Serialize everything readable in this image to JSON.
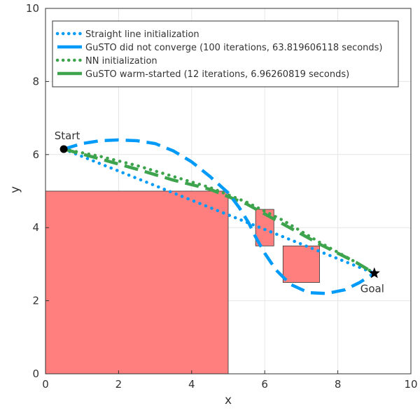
{
  "chart_data": {
    "type": "line",
    "xlabel": "x",
    "ylabel": "y",
    "xlim": [
      0,
      10
    ],
    "ylim": [
      0,
      10
    ],
    "xticks": [
      "0",
      "2",
      "4",
      "6",
      "8",
      "10"
    ],
    "yticks": [
      "0",
      "2",
      "4",
      "6",
      "8",
      "10"
    ],
    "grid": true,
    "legend_position": "top",
    "colors": {
      "blue": "#009af9",
      "green": "#3da44d",
      "obstacle": "#ff7f7f",
      "obstacle_edge": "#333333",
      "grid": "#e6e6e6",
      "axis": "#333333"
    },
    "series": [
      {
        "name": "Straight line initialization",
        "color": "#009af9",
        "style": "dotted",
        "points": [
          [
            0.5,
            6.15
          ],
          [
            9.0,
            2.75
          ]
        ]
      },
      {
        "name": "GuSTO did not converge (100 iterations, 63.819606118 seconds)",
        "color": "#009af9",
        "style": "dashed",
        "points": [
          [
            0.5,
            6.15
          ],
          [
            1.0,
            6.3
          ],
          [
            1.5,
            6.38
          ],
          [
            2.0,
            6.4
          ],
          [
            2.5,
            6.38
          ],
          [
            3.0,
            6.3
          ],
          [
            3.5,
            6.1
          ],
          [
            4.0,
            5.8
          ],
          [
            4.5,
            5.4
          ],
          [
            5.0,
            4.95
          ],
          [
            5.3,
            4.55
          ],
          [
            5.55,
            4.15
          ],
          [
            5.75,
            3.75
          ],
          [
            6.0,
            3.3
          ],
          [
            6.3,
            2.85
          ],
          [
            6.7,
            2.45
          ],
          [
            7.2,
            2.22
          ],
          [
            7.7,
            2.2
          ],
          [
            8.2,
            2.3
          ],
          [
            8.6,
            2.5
          ],
          [
            9.0,
            2.75
          ]
        ]
      },
      {
        "name": "NN initialization",
        "color": "#3da44d",
        "style": "dotted",
        "points": [
          [
            0.5,
            6.15
          ],
          [
            1.5,
            5.95
          ],
          [
            2.5,
            5.7
          ],
          [
            3.5,
            5.4
          ],
          [
            4.5,
            5.1
          ],
          [
            5.5,
            4.7
          ],
          [
            6.5,
            4.2
          ],
          [
            7.5,
            3.6
          ],
          [
            8.5,
            3.05
          ],
          [
            9.0,
            2.75
          ]
        ]
      },
      {
        "name": "GuSTO warm-started (12 iterations, 6.96260819 seconds)",
        "color": "#3da44d",
        "style": "dashed",
        "points": [
          [
            0.5,
            6.15
          ],
          [
            1.5,
            5.88
          ],
          [
            2.5,
            5.6
          ],
          [
            3.5,
            5.3
          ],
          [
            4.5,
            5.05
          ],
          [
            5.5,
            4.65
          ],
          [
            6.5,
            4.1
          ],
          [
            7.5,
            3.55
          ],
          [
            8.5,
            3.05
          ],
          [
            9.0,
            2.75
          ]
        ]
      }
    ],
    "obstacles": [
      {
        "x0": 0.0,
        "x1": 5.0,
        "y0": 0.0,
        "y1": 5.0
      },
      {
        "x0": 5.75,
        "x1": 6.25,
        "y0": 3.5,
        "y1": 4.5
      },
      {
        "x0": 6.5,
        "x1": 7.5,
        "y0": 2.5,
        "y1": 3.5
      }
    ],
    "start": {
      "label": "Start",
      "x": 0.5,
      "y": 6.15
    },
    "goal": {
      "label": "Goal",
      "x": 9.0,
      "y": 2.75
    }
  }
}
